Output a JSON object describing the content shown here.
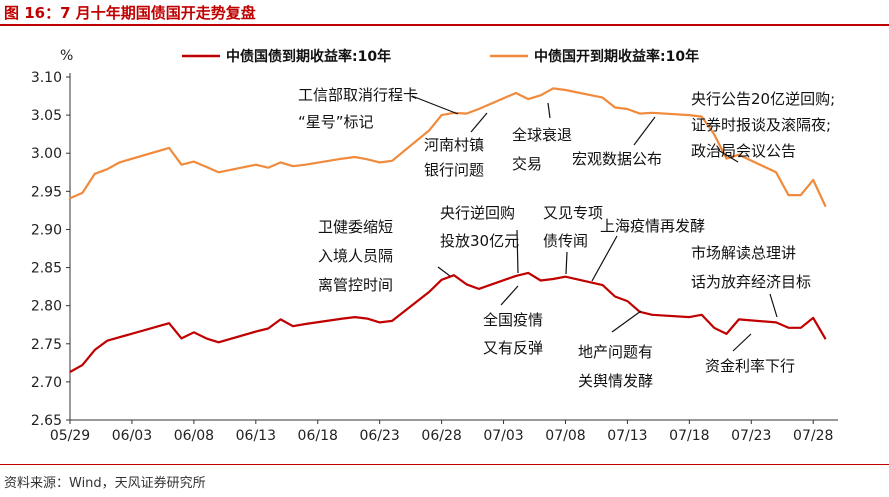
{
  "figure": {
    "title": "图 16：7 月十年期国债国开走势复盘",
    "source": "资料来源：Wind，天风证券研究所"
  },
  "chart_data": {
    "type": "line",
    "yunit": "%",
    "ylim": [
      2.65,
      3.1
    ],
    "yticks": [
      "3.10",
      "3.05",
      "3.00",
      "2.95",
      "2.90",
      "2.85",
      "2.80",
      "2.75",
      "2.70",
      "2.65"
    ],
    "xticks": [
      "05/29",
      "06/03",
      "06/08",
      "06/13",
      "06/18",
      "06/23",
      "06/28",
      "07/03",
      "07/08",
      "07/13",
      "07/18",
      "07/23",
      "07/28"
    ],
    "legend_position": "top",
    "series": [
      {
        "name": "中债国债到期收益率:10年",
        "color": "#c00000",
        "points": [
          [
            "05/29",
            2.713
          ],
          [
            "05/30",
            2.722
          ],
          [
            "05/31",
            2.742
          ],
          [
            "06/01",
            2.754
          ],
          [
            "06/06",
            2.777
          ],
          [
            "06/07",
            2.757
          ],
          [
            "06/08",
            2.765
          ],
          [
            "06/09",
            2.757
          ],
          [
            "06/10",
            2.752
          ],
          [
            "06/13",
            2.766
          ],
          [
            "06/14",
            2.77
          ],
          [
            "06/15",
            2.782
          ],
          [
            "06/16",
            2.773
          ],
          [
            "06/17",
            2.776
          ],
          [
            "06/20",
            2.783
          ],
          [
            "06/21",
            2.785
          ],
          [
            "06/22",
            2.783
          ],
          [
            "06/23",
            2.778
          ],
          [
            "06/24",
            2.78
          ],
          [
            "06/27",
            2.818
          ],
          [
            "06/28",
            2.834
          ],
          [
            "06/29",
            2.84
          ],
          [
            "06/30",
            2.828
          ],
          [
            "07/01",
            2.822
          ],
          [
            "07/04",
            2.839
          ],
          [
            "07/05",
            2.843
          ],
          [
            "07/06",
            2.833
          ],
          [
            "07/07",
            2.835
          ],
          [
            "07/08",
            2.838
          ],
          [
            "07/11",
            2.827
          ],
          [
            "07/12",
            2.812
          ],
          [
            "07/13",
            2.806
          ],
          [
            "07/14",
            2.792
          ],
          [
            "07/15",
            2.788
          ],
          [
            "07/18",
            2.785
          ],
          [
            "07/19",
            2.788
          ],
          [
            "07/20",
            2.771
          ],
          [
            "07/21",
            2.763
          ],
          [
            "07/22",
            2.782
          ],
          [
            "07/25",
            2.778
          ],
          [
            "07/26",
            2.771
          ],
          [
            "07/27",
            2.771
          ],
          [
            "07/28",
            2.784
          ],
          [
            "07/29",
            2.756
          ]
        ]
      },
      {
        "name": "中债国开到期收益率:10年",
        "color": "#f08a3c",
        "points": [
          [
            "05/29",
            2.941
          ],
          [
            "05/30",
            2.948
          ],
          [
            "05/31",
            2.973
          ],
          [
            "06/01",
            2.979
          ],
          [
            "06/02",
            2.988
          ],
          [
            "06/06",
            3.007
          ],
          [
            "06/07",
            2.985
          ],
          [
            "06/08",
            2.989
          ],
          [
            "06/09",
            2.982
          ],
          [
            "06/10",
            2.975
          ],
          [
            "06/13",
            2.985
          ],
          [
            "06/14",
            2.981
          ],
          [
            "06/15",
            2.988
          ],
          [
            "06/16",
            2.983
          ],
          [
            "06/17",
            2.985
          ],
          [
            "06/20",
            2.993
          ],
          [
            "06/21",
            2.995
          ],
          [
            "06/22",
            2.992
          ],
          [
            "06/23",
            2.988
          ],
          [
            "06/24",
            2.99
          ],
          [
            "06/27",
            3.03
          ],
          [
            "06/28",
            3.05
          ],
          [
            "06/29",
            3.053
          ],
          [
            "06/30",
            3.052
          ],
          [
            "07/01",
            3.058
          ],
          [
            "07/04",
            3.079
          ],
          [
            "07/05",
            3.071
          ],
          [
            "07/06",
            3.076
          ],
          [
            "07/07",
            3.085
          ],
          [
            "07/08",
            3.083
          ],
          [
            "07/11",
            3.073
          ],
          [
            "07/12",
            3.06
          ],
          [
            "07/13",
            3.058
          ],
          [
            "07/14",
            3.052
          ],
          [
            "07/15",
            3.053
          ],
          [
            "07/18",
            3.05
          ],
          [
            "07/19",
            3.048
          ],
          [
            "07/20",
            3.025
          ],
          [
            "07/21",
            2.993
          ],
          [
            "07/22",
            2.998
          ],
          [
            "07/25",
            2.975
          ],
          [
            "07/26",
            2.945
          ],
          [
            "07/27",
            2.945
          ],
          [
            "07/28",
            2.965
          ],
          [
            "07/29",
            2.93
          ]
        ]
      }
    ],
    "annotations": [
      {
        "lines": [
          "工信部取消行程卡",
          "“星号”标记"
        ]
      },
      {
        "lines": [
          "河南村镇",
          "银行问题"
        ]
      },
      {
        "lines": [
          "全球衰退",
          "交易"
        ]
      },
      {
        "lines": [
          "宏观数据公布"
        ]
      },
      {
        "lines": [
          "央行公告20亿逆回购;",
          "证券时报谈及滚隔夜;",
          "政治局会议公告"
        ]
      },
      {
        "lines": [
          "卫健委缩短",
          "入境人员隔",
          "离管控时间"
        ]
      },
      {
        "lines": [
          "央行逆回购",
          "投放30亿元"
        ]
      },
      {
        "lines": [
          "又见专项",
          "债传闻"
        ]
      },
      {
        "lines": [
          "上海疫情再发酵"
        ]
      },
      {
        "lines": [
          "市场解读总理讲",
          "话为放弃经济目标"
        ]
      },
      {
        "lines": [
          "全国疫情",
          "又有反弹"
        ]
      },
      {
        "lines": [
          "地产问题有",
          "关舆情发酵"
        ]
      },
      {
        "lines": [
          "资金利率下行"
        ]
      }
    ]
  }
}
